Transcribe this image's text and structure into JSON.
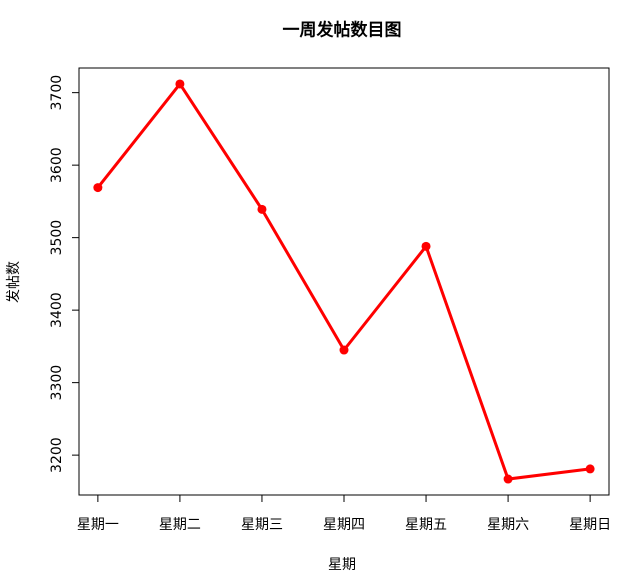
{
  "chart_data": {
    "type": "line",
    "title": "一周发帖数目图",
    "x_label": "星期",
    "y_label": "发帖数",
    "categories": [
      "星期一",
      "星期二",
      "星期三",
      "星期四",
      "星期五",
      "星期六",
      "星期日"
    ],
    "values": [
      3569,
      3712,
      3539,
      3345,
      3488,
      3167,
      3181
    ],
    "color": "#ff0000",
    "ylim": [
      3145,
      3734
    ],
    "yticks": [
      3200,
      3300,
      3400,
      3500,
      3600,
      3700
    ],
    "grid": false
  }
}
